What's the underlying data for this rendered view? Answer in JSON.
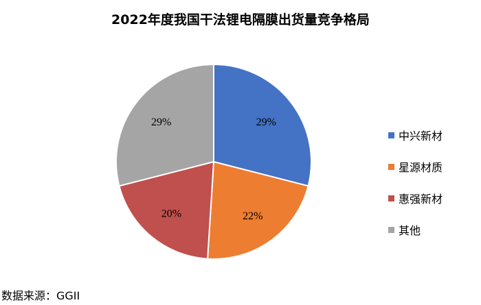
{
  "chart_data": {
    "type": "pie",
    "title": "2022年度我国干法锂电隔膜出货量竞争格局",
    "categories": [
      "中兴新材",
      "星源材质",
      "惠强新材",
      "其他"
    ],
    "values": [
      29,
      22,
      20,
      29
    ],
    "labels": [
      "29%",
      "22%",
      "20%",
      "29%"
    ],
    "colors": [
      "#4472C4",
      "#ED7D31",
      "#C0504D",
      "#A5A5A5"
    ],
    "legend_position": "right"
  },
  "source": "数据来源：GGII"
}
